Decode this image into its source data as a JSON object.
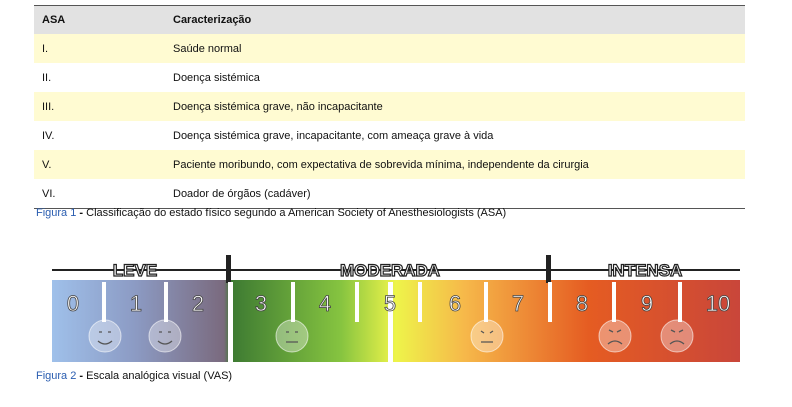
{
  "table": {
    "header": [
      "ASA",
      "Caracterização"
    ],
    "rows": [
      [
        "I.",
        "Saúde normal"
      ],
      [
        "II.",
        "Doença sistémica"
      ],
      [
        "III.",
        "Doença sistémica grave, não incapacitante"
      ],
      [
        "IV.",
        "Doença sistémica grave, incapacitante, com ameaça grave à vida"
      ],
      [
        "V.",
        "Paciente moribundo, com expectativa de sobrevida mínima, independente da cirurgia"
      ],
      [
        "VI.",
        "Doador de órgãos (cadáver)"
      ]
    ]
  },
  "figure1": {
    "label": "Figura 1",
    "dash": "-",
    "text": "Classificação do estado físico segundo a American Society of Anesthesiologists (ASA)"
  },
  "scale": {
    "sections": [
      "LEVE",
      "MODERADA",
      "INTENSA"
    ],
    "numbers": [
      0,
      1,
      2,
      3,
      4,
      5,
      6,
      7,
      8,
      9,
      10
    ]
  },
  "figure2": {
    "label": "Figura 2",
    "dash": "-",
    "text": "Escala analógica visual (VAS)"
  }
}
